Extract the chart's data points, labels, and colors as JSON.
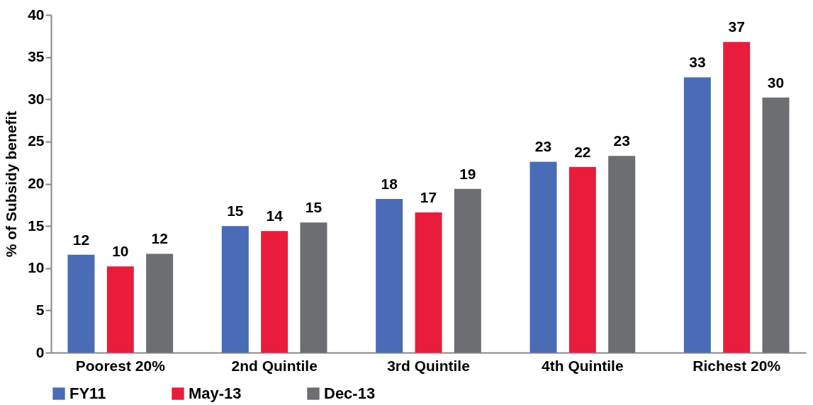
{
  "chart_data": {
    "type": "bar",
    "ylabel": "% of Subsidy benefit",
    "categories": [
      "Poorest 20%",
      "2nd Quintile",
      "3rd Quintile",
      "4th Quintile",
      "Richest 20%"
    ],
    "series": [
      {
        "name": "FY11",
        "color": "#4a6bb5",
        "values": [
          11.6,
          15.0,
          18.2,
          22.6,
          32.6
        ],
        "value_labels": [
          "12",
          "15",
          "18",
          "23",
          "33"
        ]
      },
      {
        "name": "May-13",
        "color": "#ea1c3c",
        "values": [
          10.2,
          14.4,
          16.6,
          22.0,
          36.8
        ],
        "value_labels": [
          "10",
          "14",
          "17",
          "22",
          "37"
        ]
      },
      {
        "name": "Dec-13",
        "color": "#6d6e71",
        "values": [
          11.7,
          15.4,
          19.4,
          23.3,
          30.2
        ],
        "value_labels": [
          "12",
          "15",
          "19",
          "23",
          "30"
        ]
      }
    ],
    "ylim": [
      0,
      40
    ],
    "yticks": [
      0,
      5,
      10,
      15,
      20,
      25,
      30,
      35,
      40
    ],
    "grid": false,
    "legend": "bottom"
  }
}
